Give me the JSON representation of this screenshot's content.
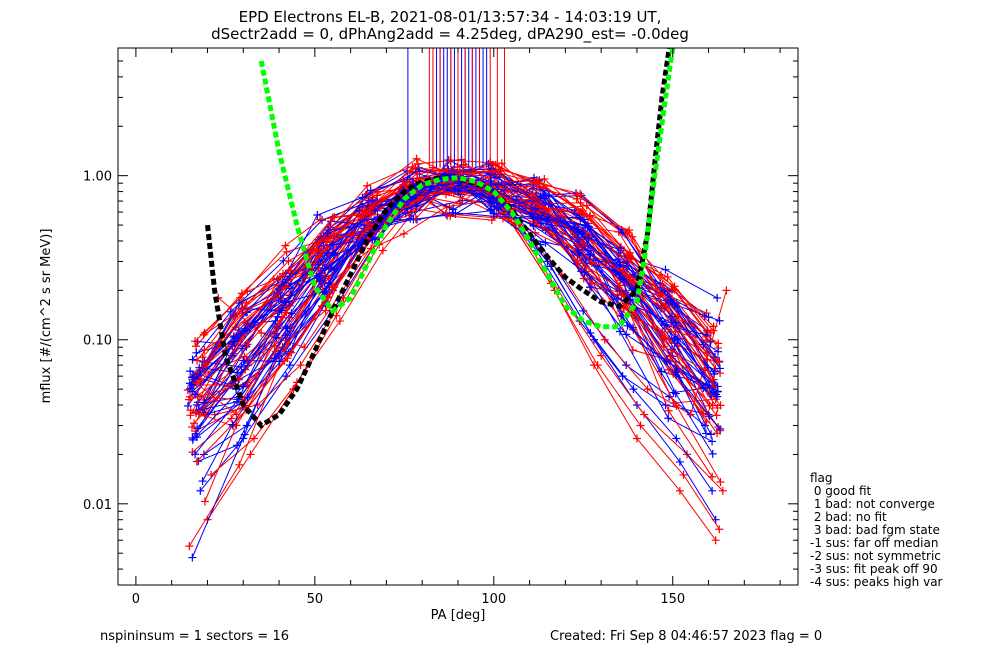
{
  "title_line1": "EPD Electrons EL-B, 2021-08-01/13:57:34 - 14:03:19 UT,",
  "title_line2": "dSectr2add = 0, dPhAng2add = 4.25deg, dPA290_est=  -0.0deg",
  "footer": {
    "left": "nspininsum =  1  sectors = 16",
    "right": "Created: Fri Sep  8 04:46:57 2023   flag = 0"
  },
  "flag_legend": {
    "header": "flag",
    "entries": [
      " 0 good fit",
      " 1 bad: not converge",
      " 2 bad: no fit",
      " 3 bad: bad fgm state",
      "-1 sus: far off median",
      "-2 sus: not symmetric",
      "-3 sus: fit peak off 90",
      "-4 sus: peaks high var"
    ]
  },
  "colors": {
    "series_a": "#ff0000",
    "series_b": "#0000ff",
    "fit_1": "#00ff00",
    "fit_2": "#000000",
    "axes": "#000000"
  },
  "chart_data": {
    "type": "line",
    "xlabel": "PA [deg]",
    "ylabel": "mflux [#/(cm^2 s sr MeV)]",
    "xlim": [
      -5,
      185
    ],
    "ylim": [
      0.0032,
      6.0
    ],
    "yscale": "log",
    "x_ticks": [
      0,
      50,
      100,
      150
    ],
    "x_tick_labels": [
      "0",
      "50",
      "100",
      "150"
    ],
    "y_ticks": [
      0.01,
      0.1,
      1.0
    ],
    "y_tick_labels": [
      "0.01",
      "0.10",
      "1.00"
    ],
    "pa_bins": [
      20,
      25,
      30,
      35,
      40,
      45,
      50,
      55,
      60,
      65,
      70,
      75,
      80,
      85,
      90,
      95,
      100,
      105,
      110,
      115,
      120,
      125,
      130,
      135,
      140,
      145,
      150,
      155,
      160,
      165
    ],
    "series": [
      {
        "color": "#0000ff",
        "style": "spectra",
        "points": [
          [
            18,
            0.012
          ],
          [
            30,
            0.025
          ],
          [
            42,
            0.06
          ],
          [
            55,
            0.15
          ],
          [
            68,
            0.42
          ],
          [
            80,
            0.85
          ],
          [
            92,
            0.92
          ],
          [
            104,
            0.6
          ],
          [
            116,
            0.28
          ],
          [
            128,
            0.1
          ],
          [
            140,
            0.04
          ],
          [
            152,
            0.018
          ],
          [
            162,
            0.008
          ]
        ]
      },
      {
        "color": "#ff0000",
        "style": "spectra",
        "points": [
          [
            20,
            0.008
          ],
          [
            32,
            0.02
          ],
          [
            44,
            0.05
          ],
          [
            56,
            0.14
          ],
          [
            68,
            0.38
          ],
          [
            80,
            0.8
          ],
          [
            92,
            0.88
          ],
          [
            104,
            0.55
          ],
          [
            116,
            0.22
          ],
          [
            128,
            0.07
          ],
          [
            140,
            0.025
          ],
          [
            152,
            0.012
          ],
          [
            162,
            0.006
          ]
        ]
      },
      {
        "color": "#0000ff",
        "style": "spectra",
        "points": [
          [
            16,
            0.06
          ],
          [
            28,
            0.05
          ],
          [
            40,
            0.08
          ],
          [
            52,
            0.16
          ],
          [
            64,
            0.4
          ],
          [
            76,
            0.8
          ],
          [
            88,
            0.95
          ],
          [
            100,
            0.7
          ],
          [
            112,
            0.35
          ],
          [
            124,
            0.13
          ],
          [
            136,
            0.06
          ],
          [
            148,
            0.04
          ],
          [
            160,
            0.035
          ]
        ]
      },
      {
        "color": "#ff0000",
        "style": "spectra",
        "points": [
          [
            22,
            0.035
          ],
          [
            34,
            0.04
          ],
          [
            46,
            0.07
          ],
          [
            58,
            0.18
          ],
          [
            70,
            0.5
          ],
          [
            82,
            0.9
          ],
          [
            94,
            0.9
          ],
          [
            106,
            0.5
          ],
          [
            118,
            0.2
          ],
          [
            130,
            0.08
          ],
          [
            142,
            0.035
          ],
          [
            154,
            0.02
          ],
          [
            164,
            0.012
          ]
        ]
      },
      {
        "color": "#0000ff",
        "style": "spectra",
        "points": [
          [
            19,
            0.02
          ],
          [
            31,
            0.03
          ],
          [
            43,
            0.07
          ],
          [
            55,
            0.2
          ],
          [
            67,
            0.5
          ],
          [
            79,
            0.88
          ],
          [
            91,
            0.96
          ],
          [
            103,
            0.65
          ],
          [
            115,
            0.3
          ],
          [
            127,
            0.11
          ],
          [
            139,
            0.05
          ],
          [
            151,
            0.025
          ],
          [
            161,
            0.012
          ]
        ]
      },
      {
        "color": "#ff0000",
        "style": "spectra",
        "points": [
          [
            21,
            0.015
          ],
          [
            33,
            0.025
          ],
          [
            45,
            0.055
          ],
          [
            57,
            0.13
          ],
          [
            69,
            0.35
          ],
          [
            81,
            0.75
          ],
          [
            93,
            0.85
          ],
          [
            105,
            0.52
          ],
          [
            117,
            0.2
          ],
          [
            129,
            0.07
          ],
          [
            141,
            0.03
          ],
          [
            153,
            0.015
          ],
          [
            163,
            0.007
          ]
        ]
      },
      {
        "color": "#0000ff",
        "style": "spectra",
        "points": [
          [
            17,
            0.04
          ],
          [
            29,
            0.045
          ],
          [
            41,
            0.09
          ],
          [
            53,
            0.17
          ],
          [
            65,
            0.45
          ],
          [
            77,
            0.85
          ],
          [
            89,
            0.97
          ],
          [
            101,
            0.72
          ],
          [
            113,
            0.38
          ],
          [
            125,
            0.15
          ],
          [
            137,
            0.07
          ],
          [
            149,
            0.045
          ],
          [
            159,
            0.03
          ]
        ]
      },
      {
        "color": "#ff0000",
        "style": "spectra",
        "points": [
          [
            23,
            0.18
          ],
          [
            35,
            0.11
          ],
          [
            47,
            0.09
          ],
          [
            59,
            0.22
          ],
          [
            71,
            0.55
          ],
          [
            83,
            1.12
          ],
          [
            95,
            0.9
          ],
          [
            107,
            0.5
          ],
          [
            119,
            0.25
          ],
          [
            131,
            0.1
          ],
          [
            143,
            0.05
          ],
          [
            155,
            0.035
          ],
          [
            165,
            0.2
          ]
        ]
      }
    ],
    "fits": [
      {
        "name": "",
        "color": "#00ff00",
        "style": "dashed",
        "points": [
          [
            35,
            5.0
          ],
          [
            40,
            1.4
          ],
          [
            45,
            0.5
          ],
          [
            50,
            0.21
          ],
          [
            55,
            0.15
          ],
          [
            60,
            0.18
          ],
          [
            65,
            0.3
          ],
          [
            70,
            0.5
          ],
          [
            75,
            0.72
          ],
          [
            80,
            0.88
          ],
          [
            85,
            0.95
          ],
          [
            90,
            0.97
          ],
          [
            95,
            0.92
          ],
          [
            100,
            0.8
          ],
          [
            105,
            0.6
          ],
          [
            110,
            0.4
          ],
          [
            115,
            0.25
          ],
          [
            120,
            0.16
          ],
          [
            125,
            0.13
          ],
          [
            130,
            0.12
          ],
          [
            135,
            0.12
          ],
          [
            140,
            0.17
          ],
          [
            142,
            0.3
          ],
          [
            145,
            1.0
          ],
          [
            148,
            3.0
          ],
          [
            150,
            6.0
          ]
        ]
      },
      {
        "name": "",
        "color": "#000000",
        "style": "dashed",
        "points": [
          [
            20,
            0.5
          ],
          [
            22,
            0.2
          ],
          [
            25,
            0.08
          ],
          [
            30,
            0.04
          ],
          [
            35,
            0.03
          ],
          [
            40,
            0.035
          ],
          [
            45,
            0.05
          ],
          [
            50,
            0.085
          ],
          [
            55,
            0.15
          ],
          [
            60,
            0.25
          ],
          [
            65,
            0.42
          ],
          [
            70,
            0.62
          ],
          [
            75,
            0.8
          ],
          [
            80,
            0.92
          ],
          [
            85,
            0.97
          ],
          [
            90,
            0.96
          ],
          [
            95,
            0.9
          ],
          [
            100,
            0.8
          ],
          [
            105,
            0.62
          ],
          [
            110,
            0.44
          ],
          [
            115,
            0.32
          ],
          [
            120,
            0.24
          ],
          [
            125,
            0.2
          ],
          [
            130,
            0.17
          ],
          [
            135,
            0.16
          ],
          [
            140,
            0.2
          ],
          [
            143,
            0.45
          ],
          [
            145,
            1.2
          ],
          [
            147,
            3.0
          ],
          [
            149,
            6.0
          ]
        ]
      }
    ],
    "vertical_markers": {
      "blue_x": [
        76,
        84,
        85,
        86,
        87,
        88,
        89,
        90,
        91,
        92,
        93,
        94,
        95,
        96,
        97,
        98
      ],
      "red_x": [
        82,
        83,
        85,
        88,
        90,
        92,
        94,
        96,
        99,
        101,
        103
      ]
    }
  }
}
